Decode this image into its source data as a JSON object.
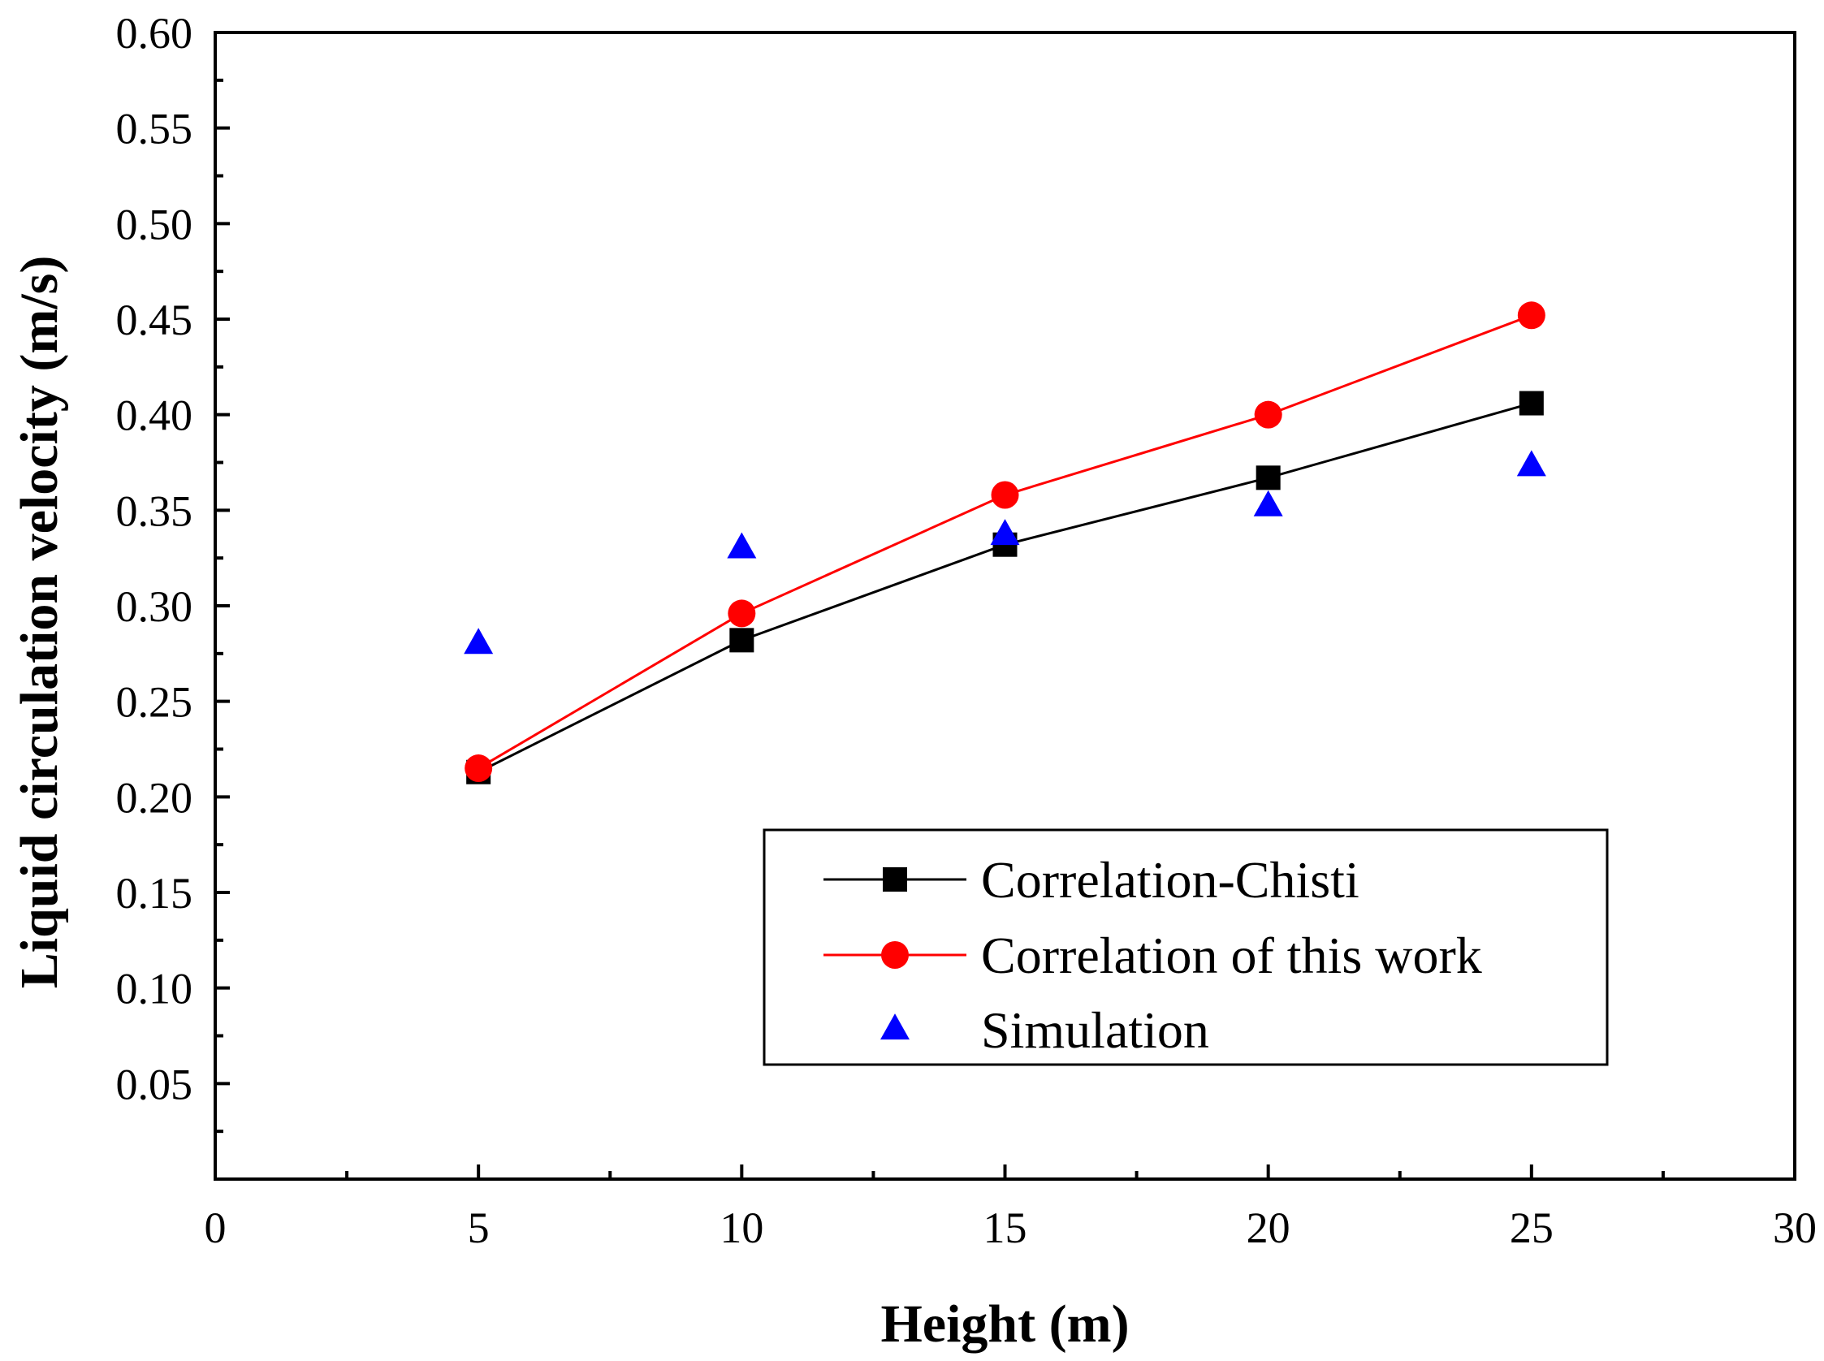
{
  "chart_data": {
    "type": "line",
    "title": "",
    "xlabel": "Height (m)",
    "ylabel": "Liquid circulation velocity (m/s)",
    "xlim": [
      0,
      30
    ],
    "ylim": [
      0.0,
      0.6
    ],
    "x_ticks": [
      0,
      5,
      10,
      15,
      20,
      25,
      30
    ],
    "x_tick_labels": [
      "0",
      "5",
      "10",
      "15",
      "20",
      "25",
      "30"
    ],
    "y_ticks": [
      0.05,
      0.1,
      0.15,
      0.2,
      0.25,
      0.3,
      0.35,
      0.4,
      0.45,
      0.5,
      0.55,
      0.6
    ],
    "y_tick_labels": [
      "0.05",
      "0.10",
      "0.15",
      "0.20",
      "0.25",
      "0.30",
      "0.35",
      "0.40",
      "0.45",
      "0.50",
      "0.55",
      "0.60"
    ],
    "grid": false,
    "legend_position": "lower-right",
    "series": [
      {
        "name": "Correlation-Chisti",
        "marker": "square",
        "line": true,
        "color": "#000000",
        "x": [
          5,
          10,
          15,
          20,
          25
        ],
        "y": [
          0.213,
          0.282,
          0.332,
          0.367,
          0.406
        ]
      },
      {
        "name": "Correlation of this work",
        "marker": "circle",
        "line": true,
        "color": "#ff0000",
        "x": [
          5,
          10,
          15,
          20,
          25
        ],
        "y": [
          0.215,
          0.296,
          0.358,
          0.4,
          0.452
        ]
      },
      {
        "name": "Simulation",
        "marker": "triangle",
        "line": false,
        "color": "#0000ff",
        "x": [
          5,
          10,
          15,
          20,
          25
        ],
        "y": [
          0.28,
          0.33,
          0.337,
          0.352,
          0.373
        ]
      }
    ]
  }
}
